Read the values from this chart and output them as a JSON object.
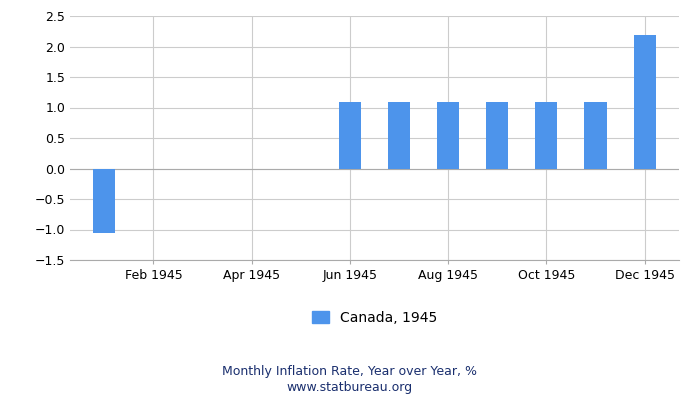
{
  "month_nums": [
    1,
    2,
    3,
    4,
    5,
    6,
    7,
    8,
    9,
    10,
    11,
    12
  ],
  "values": [
    -1.06,
    0,
    0,
    0,
    0,
    1.09,
    1.09,
    1.09,
    1.09,
    1.09,
    1.09,
    2.19
  ],
  "bar_color": "#4d94eb",
  "bar_width": 0.45,
  "xtick_labels": [
    "Feb 1945",
    "Apr 1945",
    "Jun 1945",
    "Aug 1945",
    "Oct 1945",
    "Dec 1945"
  ],
  "xtick_positions": [
    2,
    4,
    6,
    8,
    10,
    12
  ],
  "xlim": [
    0.3,
    12.7
  ],
  "ylim": [
    -1.5,
    2.5
  ],
  "yticks": [
    -1.5,
    -1.0,
    -0.5,
    0,
    0.5,
    1.0,
    1.5,
    2.0,
    2.5
  ],
  "legend_label": "Canada, 1945",
  "footer_line1": "Monthly Inflation Rate, Year over Year, %",
  "footer_line2": "www.statbureau.org",
  "background_color": "#ffffff",
  "grid_color": "#cccccc",
  "footer_color": "#1a2f6e",
  "tick_label_fontsize": 9,
  "legend_fontsize": 10,
  "footer_fontsize": 9
}
